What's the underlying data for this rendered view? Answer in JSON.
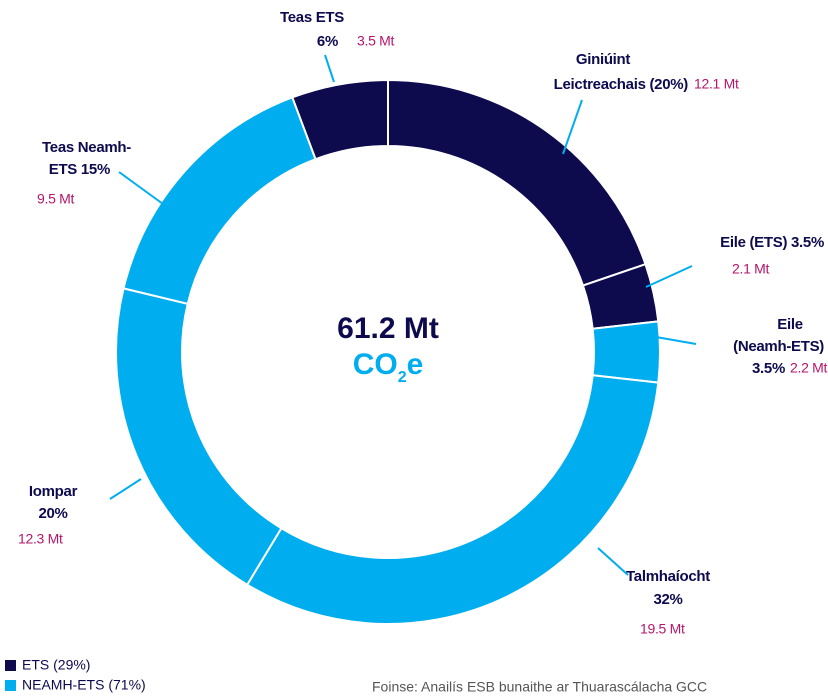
{
  "chart_data": {
    "type": "pie",
    "categories": [
      [
        "Giniúint",
        "Leictreachais (20%)"
      ],
      [
        "Eile (ETS) 3.5%"
      ],
      [
        "Eile",
        "(Neamh-ETS)",
        "3.5%"
      ],
      [
        "Talmhaíocht",
        "32%"
      ],
      [
        "Iompar",
        "20%"
      ],
      [
        "Teas Neamh-",
        "ETS 15%"
      ],
      [
        "Teas ETS",
        "6%"
      ]
    ],
    "values": [
      12.1,
      2.1,
      2.2,
      19.5,
      12.3,
      9.5,
      3.5
    ],
    "value_labels": [
      "12.1 Mt",
      "2.1 Mt",
      "2.2 Mt",
      "19.5 Mt",
      "12.3 Mt",
      "9.5 Mt",
      "3.5 Mt"
    ],
    "colors": [
      "#0d0a4e",
      "#0d0a4e",
      "#00aeef",
      "#00aeef",
      "#00aeef",
      "#00aeef",
      "#0d0a4e"
    ],
    "center_label": "61.2 Mt",
    "center_unit": [
      "CO",
      "2",
      "e"
    ],
    "legend": [
      {
        "name": "ETS (29%)",
        "color": "#0d0a4e"
      },
      {
        "name": "NEAMH-ETS (71%)",
        "color": "#00aeef"
      }
    ],
    "source": "Foinse: Anailís ESB bunaithe ar Thuarascálacha GCC"
  }
}
